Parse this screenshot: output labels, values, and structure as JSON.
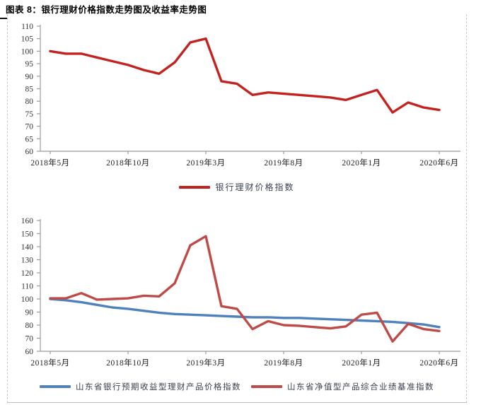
{
  "page": {
    "title": "图表 8：银行理财价格指数走势图及收益率走势图"
  },
  "chart_data": [
    {
      "type": "line",
      "title": "",
      "xlabel": "",
      "ylabel": "",
      "ylim": [
        60,
        110
      ],
      "y_ticks": [
        60,
        65,
        70,
        75,
        80,
        85,
        90,
        95,
        100,
        105,
        110
      ],
      "grid": false,
      "legend_position": "bottom",
      "categories": [
        "2018年5月",
        "2018年6月",
        "2018年7月",
        "2018年8月",
        "2018年9月",
        "2018年10月",
        "2018年11月",
        "2018年12月",
        "2019年1月",
        "2019年2月",
        "2019年3月",
        "2019年4月",
        "2019年5月",
        "2019年6月",
        "2019年7月",
        "2019年8月",
        "2019年9月",
        "2019年10月",
        "2019年11月",
        "2019年12月",
        "2020年1月",
        "2020年2月",
        "2020年3月",
        "2020年4月",
        "2020年5月",
        "2020年6月"
      ],
      "x_tick_labels": [
        "2018年5月",
        "2018年10月",
        "2019年3月",
        "2019年8月",
        "2020年1月",
        "2020年6月"
      ],
      "x_tick_indices": [
        0,
        5,
        10,
        15,
        20,
        25
      ],
      "series": [
        {
          "name": "银行理财价格指数",
          "color": "#c3231f",
          "values": [
            100,
            99,
            99,
            97.5,
            96,
            94.5,
            92.5,
            91,
            95.5,
            103.5,
            105,
            88,
            87,
            82.5,
            83.5,
            83,
            82.5,
            82,
            81.5,
            80.5,
            82.5,
            84.5,
            75.5,
            79.5,
            77.5,
            76.5
          ]
        }
      ]
    },
    {
      "type": "line",
      "title": "",
      "xlabel": "",
      "ylabel": "",
      "ylim": [
        60,
        160
      ],
      "y_ticks": [
        60,
        70,
        80,
        90,
        100,
        110,
        120,
        130,
        140,
        150,
        160
      ],
      "grid": false,
      "legend_position": "bottom",
      "categories": [
        "2018年5月",
        "2018年6月",
        "2018年7月",
        "2018年8月",
        "2018年9月",
        "2018年10月",
        "2018年11月",
        "2018年12月",
        "2019年1月",
        "2019年2月",
        "2019年3月",
        "2019年4月",
        "2019年5月",
        "2019年6月",
        "2019年7月",
        "2019年8月",
        "2019年9月",
        "2019年10月",
        "2019年11月",
        "2019年12月",
        "2020年1月",
        "2020年2月",
        "2020年3月",
        "2020年4月",
        "2020年5月",
        "2020年6月"
      ],
      "x_tick_labels": [
        "2018年5月",
        "2018年10月",
        "2019年3月",
        "2019年8月",
        "2020年1月",
        "2020年6月"
      ],
      "x_tick_indices": [
        0,
        5,
        10,
        15,
        20,
        25
      ],
      "series": [
        {
          "name": "山东省银行预期收益型理财产品价格指数",
          "color": "#4f81bd",
          "values": [
            100,
            99,
            97.5,
            95.5,
            93.5,
            92.5,
            91,
            89.5,
            88.5,
            88,
            87.5,
            87,
            86.5,
            86,
            86,
            85.5,
            85.5,
            85,
            84.5,
            84,
            83.5,
            83,
            82.5,
            81.5,
            80.5,
            78.5
          ]
        },
        {
          "name": "山东省净值型产品综合业绩基准指数",
          "color": "#be4b48",
          "values": [
            100.5,
            100.5,
            104.5,
            99.5,
            100,
            100.5,
            102.5,
            102,
            112,
            141,
            148,
            94.5,
            92.5,
            77,
            83,
            80,
            79.5,
            78.5,
            77.5,
            79,
            88,
            89.5,
            67.5,
            81,
            77,
            75.5
          ]
        }
      ]
    }
  ],
  "style": {
    "axis_color": "#9b9b9b",
    "tick_text_color": "#333333",
    "date_text_color": "#1f1f1f"
  }
}
